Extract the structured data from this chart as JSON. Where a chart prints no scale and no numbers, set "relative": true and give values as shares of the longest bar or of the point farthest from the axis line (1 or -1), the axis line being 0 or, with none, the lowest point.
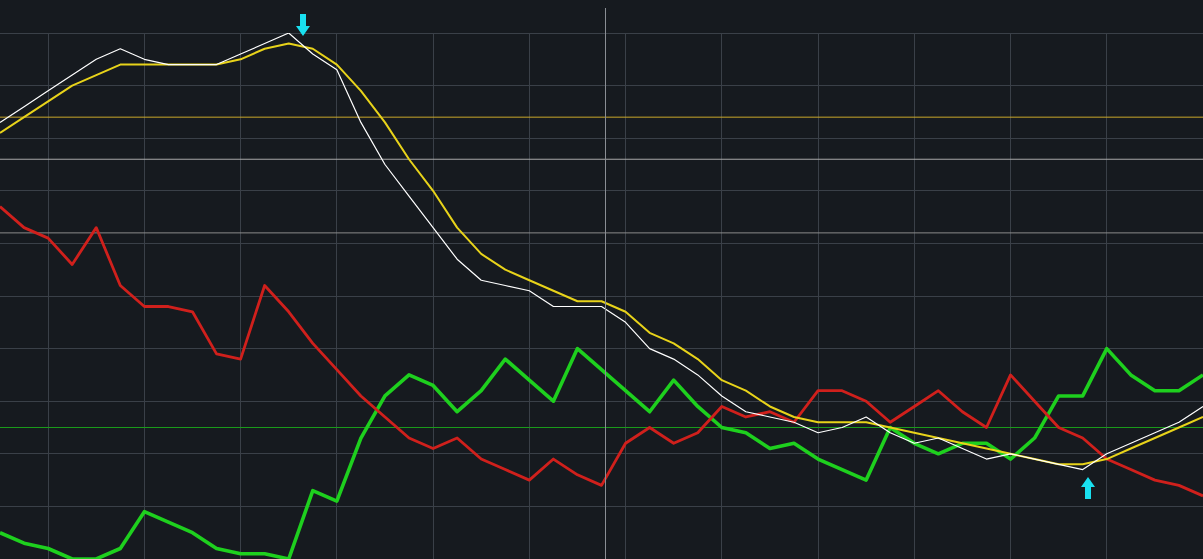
{
  "chart_data": {
    "type": "line",
    "relative": true,
    "grid": true,
    "legend": false,
    "marker": "none",
    "line_style": "solid",
    "categories": [
      null,
      null,
      null,
      null,
      null,
      null,
      null,
      null,
      null,
      null,
      null,
      null,
      null,
      null,
      null,
      null,
      null,
      null,
      null,
      null,
      null,
      null,
      null,
      null,
      null,
      null,
      null,
      null,
      null,
      null,
      null,
      null,
      null,
      null,
      null,
      null,
      null,
      null,
      null,
      null,
      null,
      null,
      null,
      null,
      null,
      null,
      null,
      null,
      null,
      null,
      null
    ],
    "series": [
      {
        "color": "#ffffff",
        "values": [
          0.83,
          0.86,
          0.89,
          0.92,
          0.95,
          0.97,
          0.95,
          0.94,
          0.94,
          0.94,
          0.96,
          0.98,
          1,
          0.96,
          0.93,
          0.83,
          0.75,
          0.69,
          0.63,
          0.57,
          0.53,
          0.52,
          0.51,
          0.48,
          0.48,
          0.48,
          0.45,
          0.4,
          0.38,
          0.35,
          0.31,
          0.28,
          0.27,
          0.26,
          0.24,
          0.25,
          0.27,
          0.24,
          0.22,
          0.23,
          0.21,
          0.19,
          0.2,
          0.19,
          0.18,
          0.17,
          0.2,
          0.22,
          0.24,
          0.26,
          0.29
        ]
      },
      {
        "color": "#e8d31a",
        "values": [
          0.81,
          0.84,
          0.87,
          0.9,
          0.92,
          0.94,
          0.94,
          0.94,
          0.94,
          0.94,
          0.95,
          0.97,
          0.98,
          0.97,
          0.94,
          0.89,
          0.83,
          0.76,
          0.7,
          0.63,
          0.58,
          0.55,
          0.53,
          0.51,
          0.49,
          0.49,
          0.47,
          0.43,
          0.41,
          0.38,
          0.34,
          0.32,
          0.29,
          0.27,
          0.26,
          0.26,
          0.26,
          0.25,
          0.24,
          0.23,
          0.22,
          0.21,
          0.2,
          0.19,
          0.18,
          0.18,
          0.19,
          0.21,
          0.23,
          0.25,
          0.27
        ]
      },
      {
        "color": "#d0201c",
        "values": [
          0.67,
          0.63,
          0.61,
          0.56,
          0.63,
          0.52,
          0.48,
          0.48,
          0.47,
          0.39,
          0.38,
          0.52,
          0.47,
          0.41,
          0.36,
          0.31,
          0.27,
          0.23,
          0.21,
          0.23,
          0.19,
          0.17,
          0.15,
          0.19,
          0.16,
          0.14,
          0.22,
          0.25,
          0.22,
          0.24,
          0.29,
          0.27,
          0.28,
          0.26,
          0.32,
          0.32,
          0.3,
          0.26,
          0.29,
          0.32,
          0.28,
          0.25,
          0.35,
          0.3,
          0.25,
          0.23,
          0.19,
          0.17,
          0.15,
          0.14,
          0.12
        ]
      },
      {
        "color": "#1ed01e",
        "values": [
          0.05,
          0.03,
          0.02,
          0.0,
          0.0,
          0.02,
          0.09,
          0.07,
          0.05,
          0.02,
          0.01,
          0.01,
          0,
          0.13,
          0.11,
          0.23,
          0.31,
          0.35,
          0.33,
          0.28,
          0.32,
          0.38,
          0.34,
          0.3,
          0.4,
          0.36,
          0.32,
          0.28,
          0.34,
          0.29,
          0.25,
          0.24,
          0.21,
          0.22,
          0.19,
          0.17,
          0.15,
          0.25,
          0.22,
          0.2,
          0.22,
          0.22,
          0.19,
          0.23,
          0.31,
          0.31,
          0.4,
          0.35,
          0.32,
          0.32,
          0.35
        ]
      }
    ],
    "ref_lines": [
      {
        "axis": "y",
        "value": 0.84,
        "color": "#c9a82a"
      },
      {
        "axis": "y",
        "value": 0.76,
        "color": "#a8a8a8"
      },
      {
        "axis": "y",
        "value": 0.62,
        "color": "#8a8a8a"
      },
      {
        "axis": "y",
        "value": 0.25,
        "color": "#1a9a1a"
      }
    ]
  }
}
